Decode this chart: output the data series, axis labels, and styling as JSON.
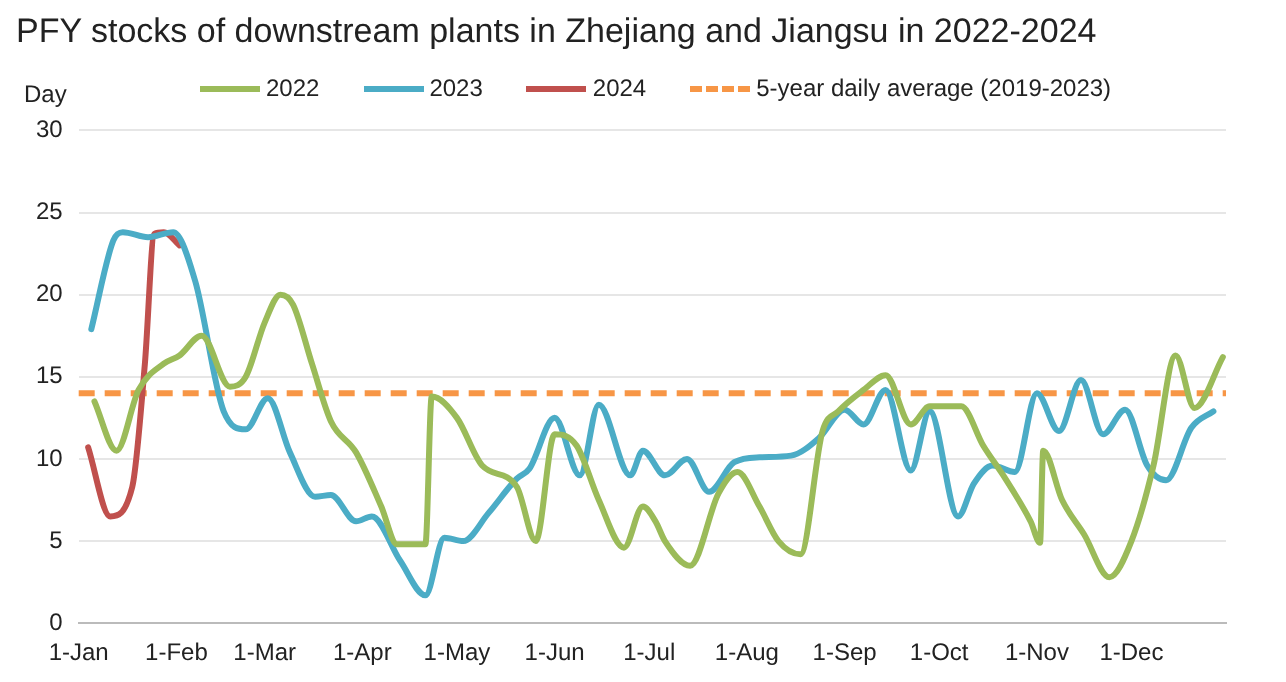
{
  "chart_data": {
    "type": "line",
    "title": "PFY stocks of downstream plants in Zhejiang and Jiangsu in 2022-2024",
    "ylabel": "Day",
    "xlim": [
      "--01-01",
      "--12-31"
    ],
    "xticks": [
      {
        "value": "--01-01",
        "label": "1-Jan"
      },
      {
        "value": "--02-01",
        "label": "1-Feb"
      },
      {
        "value": "--03-01",
        "label": "1-Mar"
      },
      {
        "value": "--04-01",
        "label": "1-Apr"
      },
      {
        "value": "--05-01",
        "label": "1-May"
      },
      {
        "value": "--06-01",
        "label": "1-Jun"
      },
      {
        "value": "--07-01",
        "label": "1-Jul"
      },
      {
        "value": "--08-01",
        "label": "1-Aug"
      },
      {
        "value": "--09-01",
        "label": "1-Sep"
      },
      {
        "value": "--10-01",
        "label": "1-Oct"
      },
      {
        "value": "--11-01",
        "label": "1-Nov"
      },
      {
        "value": "--12-01",
        "label": "1-Dec"
      }
    ],
    "ylim": [
      0,
      30
    ],
    "yticks": [
      0,
      5,
      10,
      15,
      20,
      25,
      30
    ],
    "grid": "y",
    "legend": "top",
    "marker": "none",
    "line_style": "solid",
    "series": [
      {
        "name": "2022",
        "color": "#9bbb59",
        "x": [
          "--01-06",
          "--01-13",
          "--01-20",
          "--01-28",
          "--02-02",
          "--02-09",
          "--02-18",
          "--02-23",
          "--03-01",
          "--03-06",
          "--03-10",
          "--03-16",
          "--03-22",
          "--03-30",
          "--04-07",
          "--04-12",
          "--04-21",
          "--04-23",
          "--05-01",
          "--05-09",
          "--05-20",
          "--05-26",
          "--06-01",
          "--06-08",
          "--06-15",
          "--06-23",
          "--06-29",
          "--07-03",
          "--07-06",
          "--07-14",
          "--07-23",
          "--07-29",
          "--08-05",
          "--08-11",
          "--08-18",
          "--08-25",
          "--08-30",
          "--09-07",
          "--09-14",
          "--09-22",
          "--09-28",
          "--10-08",
          "--10-15",
          "--10-22",
          "--10-30",
          "--11-02",
          "--11-03",
          "--11-09",
          "--11-16",
          "--11-24",
          "--12-01",
          "--12-08",
          "--12-15",
          "--12-21",
          "--12-30"
        ],
        "values": [
          13.5,
          10.5,
          14.2,
          15.8,
          16.3,
          17.5,
          14.4,
          15,
          18.3,
          20,
          19.4,
          15.8,
          12.3,
          10.4,
          7.1,
          4.8,
          4.8,
          13.8,
          12.5,
          9.6,
          8.3,
          5,
          11.5,
          10.8,
          7.5,
          4.6,
          7.1,
          6.2,
          5,
          3.5,
          7.9,
          9.2,
          7.1,
          5,
          4.2,
          11.7,
          12.9,
          14.2,
          15.1,
          12.1,
          13.2,
          13.2,
          10.8,
          8.8,
          6.2,
          4.9,
          10.5,
          7.5,
          5.4,
          2.8,
          5,
          9.6,
          16.3,
          13.1,
          16.2
        ]
      },
      {
        "name": "2023",
        "color": "#4bacc6",
        "x": [
          "--01-05",
          "--01-12",
          "--01-15",
          "--01-23",
          "--01-31",
          "--02-07",
          "--02-16",
          "--02-23",
          "--03-02",
          "--03-09",
          "--03-17",
          "--03-22",
          "--03-30",
          "--04-04",
          "--04-13",
          "--04-21",
          "--04-27",
          "--05-03",
          "--05-11",
          "--05-20",
          "--05-24",
          "--06-01",
          "--06-09",
          "--06-15",
          "--06-25",
          "--06-29",
          "--07-06",
          "--07-13",
          "--07-20",
          "--07-28",
          "--08-05",
          "--08-15",
          "--08-24",
          "--09-01",
          "--09-07",
          "--09-14",
          "--09-22",
          "--09-28",
          "--10-07",
          "--10-12",
          "--10-18",
          "--10-25",
          "--11-01",
          "--11-08",
          "--11-15",
          "--11-22",
          "--11-29",
          "--12-06",
          "--12-12",
          "--12-20",
          "--12-27"
        ],
        "values": [
          17.9,
          23.3,
          23.8,
          23.5,
          23.8,
          20.8,
          12.9,
          11.8,
          13.7,
          10.4,
          7.7,
          7.8,
          6.2,
          6.5,
          3.8,
          1.7,
          5.2,
          5,
          6.7,
          8.8,
          9.4,
          12.5,
          9,
          13.3,
          9,
          10.5,
          9,
          10,
          8,
          9.8,
          10.1,
          10.2,
          11.3,
          13,
          12.1,
          14.2,
          9.3,
          12.9,
          6.5,
          8.5,
          9.6,
          9.2,
          14,
          11.7,
          14.8,
          11.5,
          13,
          9.6,
          8.7,
          11.9,
          12.9
        ]
      },
      {
        "name": "2024",
        "color": "#c0504d",
        "x": [
          "--01-04",
          "--01-11",
          "--01-18",
          "--01-22",
          "--01-25",
          "--01-28",
          "--02-02"
        ],
        "values": [
          10.7,
          6.5,
          8.3,
          15.8,
          23.7,
          23.8,
          23
        ]
      }
    ],
    "ref_lines": [
      {
        "axis": "y",
        "value": 14,
        "label": "5-year daily average (2019-2023)",
        "color": "#f79646",
        "line_style": "dashed"
      }
    ]
  }
}
